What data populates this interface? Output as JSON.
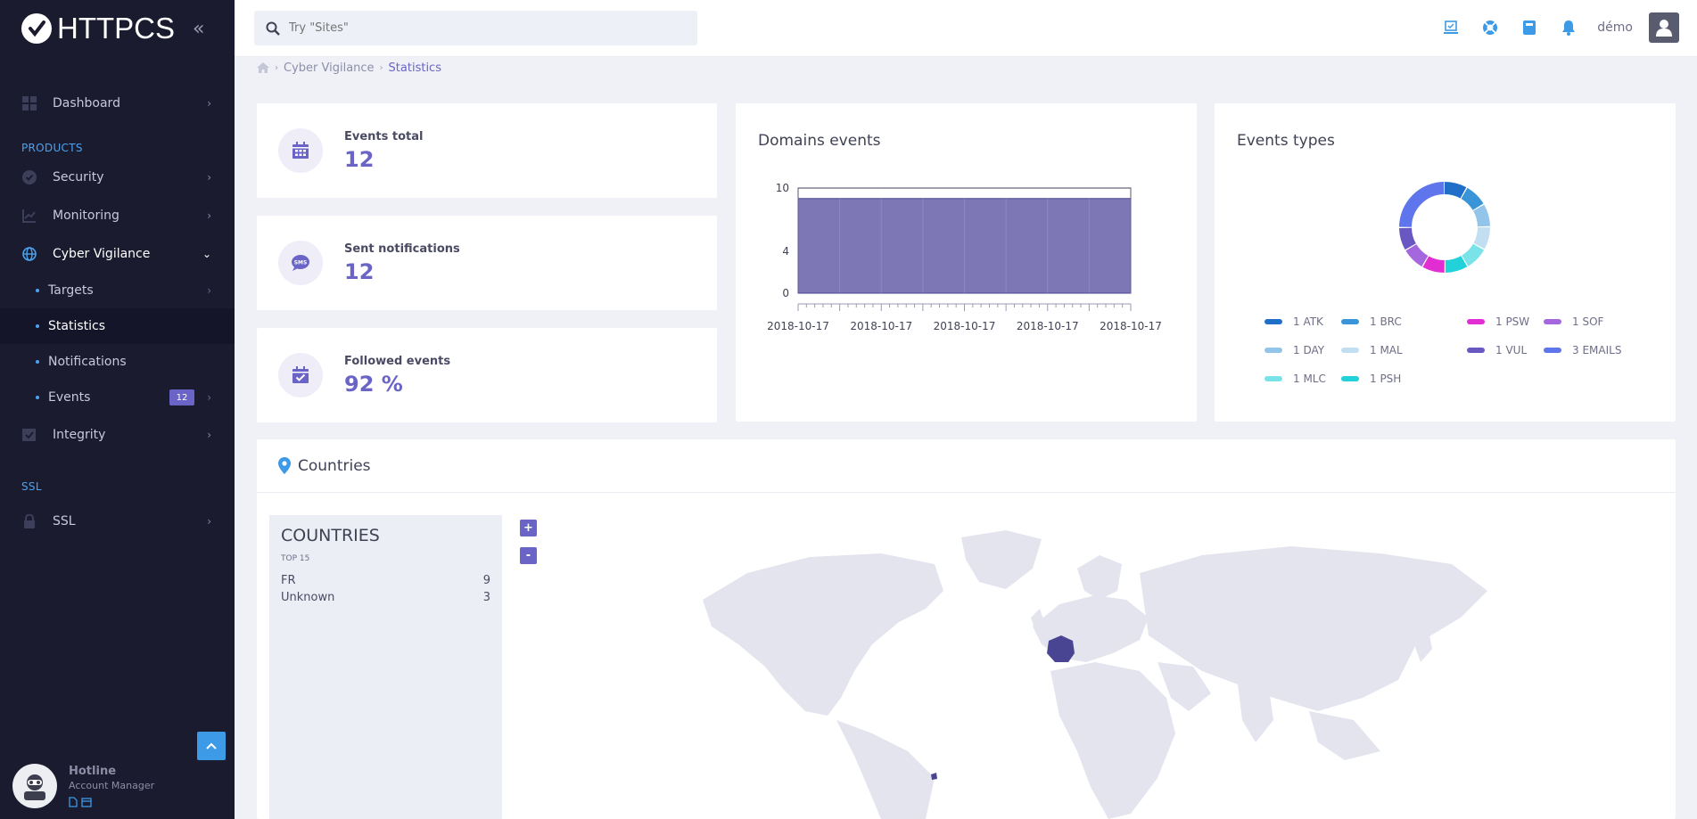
{
  "brand": {
    "name": "HTTPCS"
  },
  "search": {
    "placeholder": "Try \"Sites\""
  },
  "topbar": {
    "user_name": "démo"
  },
  "sidebar": {
    "dashboard": "Dashboard",
    "section_products": "PRODUCTS",
    "security": "Security",
    "monitoring": "Monitoring",
    "cyber_vigilance": "Cyber Vigilance",
    "sub": {
      "targets": "Targets",
      "statistics": "Statistics",
      "notifications": "Notifications",
      "events": "Events",
      "events_badge": "12"
    },
    "integrity": "Integrity",
    "section_ssl": "SSL",
    "ssl": "SSL",
    "hotline": {
      "name": "Hotline",
      "role": "Account Manager"
    }
  },
  "breadcrumb": {
    "section": "Cyber Vigilance",
    "current": "Statistics"
  },
  "stats": [
    {
      "label": "Events total",
      "value": "12"
    },
    {
      "label": "Sent notifications",
      "value": "12"
    },
    {
      "label": "Followed events",
      "value": "92 %"
    }
  ],
  "domains_card": {
    "title": "Domains events"
  },
  "types_card": {
    "title": "Events types"
  },
  "countries": {
    "title": "Countries",
    "panel_title": "COUNTRIES",
    "panel_sub": "TOP 15",
    "rows": [
      {
        "name": "FR",
        "count": "9"
      },
      {
        "name": "Unknown",
        "count": "3"
      }
    ],
    "zoom_in": "+",
    "zoom_out": "-"
  },
  "colors": {
    "accent": "#6a64c6",
    "sidebar_bg": "#1b1b2f",
    "link_blue": "#3d9ae6"
  },
  "chart_data": [
    {
      "type": "area",
      "title": "Domains events",
      "x": [
        "2018-10-17",
        "2018-10-17",
        "2018-10-17",
        "2018-10-17",
        "2018-10-17"
      ],
      "y_ticks": [
        "0",
        "4",
        "10"
      ],
      "ylim": [
        0,
        10
      ],
      "series": [
        {
          "values": [
            9,
            9,
            9,
            9,
            9
          ],
          "color": "#7d78b5"
        }
      ]
    },
    {
      "type": "pie",
      "title": "Events types",
      "donut": true,
      "slices": [
        {
          "label": "1 ATK",
          "value": 1,
          "color": "#1f6fc9"
        },
        {
          "label": "1 BRC",
          "value": 1,
          "color": "#3a95d8"
        },
        {
          "label": "1 DAY",
          "value": 1,
          "color": "#93c4ea"
        },
        {
          "label": "1 MAL",
          "value": 1,
          "color": "#c2dff2"
        },
        {
          "label": "1 MLC",
          "value": 1,
          "color": "#7ae3ea"
        },
        {
          "label": "1 PSH",
          "value": 1,
          "color": "#22d2da"
        },
        {
          "label": "1 PSW",
          "value": 1,
          "color": "#e12dd2"
        },
        {
          "label": "1 SOF",
          "value": 1,
          "color": "#a567dd"
        },
        {
          "label": "1 VUL",
          "value": 1,
          "color": "#6a58c2"
        },
        {
          "label": "3 EMAILS",
          "value": 3,
          "color": "#5f75ec"
        }
      ]
    }
  ]
}
